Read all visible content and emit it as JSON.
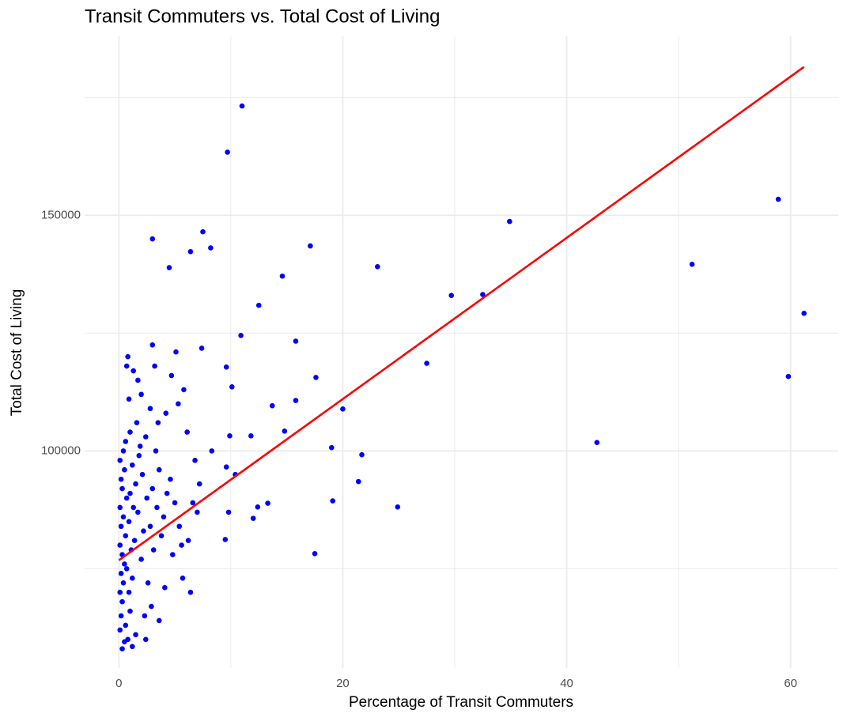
{
  "chart_data": {
    "type": "scatter",
    "title": "Transit Commuters vs. Total Cost of Living",
    "x_label": "Percentage of Transit Commuters",
    "y_label": "Total Cost of Living",
    "color": "#0000ff",
    "x": [
      11.0,
      9.7,
      3.0,
      7.5,
      6.4,
      8.2,
      4.5,
      17.1,
      14.6,
      23.1,
      34.9,
      58.9,
      51.2,
      61.2,
      59.8,
      42.7,
      29.7,
      32.5,
      27.5,
      12.5,
      15.8,
      10.9,
      17.6,
      15.8,
      13.7,
      20.0,
      14.8,
      19.0,
      21.7,
      21.4,
      19.1,
      24.9,
      13.3,
      12.4,
      12.0,
      17.5,
      9.5,
      9.8,
      10.4,
      9.6,
      9.9,
      10.1,
      9.6,
      11.8,
      3.0,
      7.4,
      0.1,
      0.2,
      0.3,
      0.1,
      0.4,
      0.2,
      0.5,
      0.3,
      0.1,
      0.6,
      0.2,
      0.4,
      0.1,
      0.7,
      0.3,
      0.2,
      0.5,
      0.1,
      0.4,
      0.8,
      0.6,
      1.0,
      0.9,
      1.2,
      0.7,
      1.1,
      1.4,
      0.9,
      1.3,
      1.0,
      1.5,
      1.2,
      1.8,
      0.6,
      1.0,
      1.6,
      2.0,
      2.2,
      1.7,
      2.5,
      2.1,
      1.9,
      2.8,
      3.1,
      2.6,
      3.4,
      3.0,
      3.6,
      2.4,
      3.3,
      4.0,
      4.3,
      3.8,
      4.6,
      5.0,
      5.4,
      4.8,
      5.6,
      4.1,
      5.7,
      6.4,
      3.6,
      2.4,
      1.2,
      0.7,
      1.3,
      2.0,
      0.9,
      2.8,
      3.5,
      4.2,
      5.3,
      6.1,
      5.8,
      4.7,
      5.1,
      3.2,
      1.7,
      0.8,
      6.6,
      7.2,
      7.0,
      6.8,
      8.3,
      6.2,
      0.3,
      0.5,
      1.5,
      2.3,
      2.9
    ],
    "values": [
      173200,
      163400,
      145000,
      146500,
      142300,
      143100,
      138900,
      143500,
      137100,
      139100,
      148700,
      153400,
      139600,
      129200,
      115800,
      101800,
      133000,
      133200,
      118600,
      130900,
      123300,
      124500,
      115600,
      110700,
      109600,
      108900,
      104200,
      100700,
      99200,
      93500,
      89400,
      88100,
      88900,
      88100,
      85700,
      78200,
      81200,
      87000,
      95000,
      96600,
      103200,
      113600,
      117800,
      103200,
      122500,
      121800,
      62000,
      65000,
      68000,
      70000,
      72000,
      74000,
      76000,
      78000,
      80000,
      82000,
      84000,
      86000,
      88000,
      90000,
      92000,
      94000,
      96000,
      98000,
      100000,
      60000,
      63000,
      66000,
      70000,
      73000,
      75000,
      79000,
      81000,
      85000,
      88000,
      91000,
      93000,
      97000,
      99000,
      102000,
      104000,
      106000,
      77000,
      83000,
      87000,
      90000,
      95000,
      101000,
      84000,
      79000,
      72000,
      88000,
      92000,
      96000,
      103000,
      100000,
      86000,
      91000,
      82000,
      94000,
      89000,
      84000,
      78000,
      80000,
      71000,
      73000,
      70000,
      64000,
      60000,
      58500,
      118000,
      117000,
      112000,
      111000,
      109000,
      106000,
      108000,
      110000,
      104000,
      113000,
      116000,
      121000,
      118000,
      115000,
      120000,
      89000,
      93000,
      87000,
      98000,
      100000,
      81000,
      58000,
      59500,
      61000,
      65000,
      67000
    ],
    "trend": {
      "color": "#ff0000",
      "x": [
        0,
        61.2
      ],
      "values": [
        76800,
        181500
      ]
    },
    "xlim": [
      -3.06,
      64.26
    ],
    "ylim": [
      52250,
      178750
    ],
    "xticks": [
      0,
      20,
      40,
      60
    ],
    "yticks": [
      100000,
      150000
    ],
    "x_minor_grid": [
      10,
      30,
      50
    ],
    "y_minor_grid": [
      75000,
      125000,
      175000
    ],
    "grid": true
  }
}
